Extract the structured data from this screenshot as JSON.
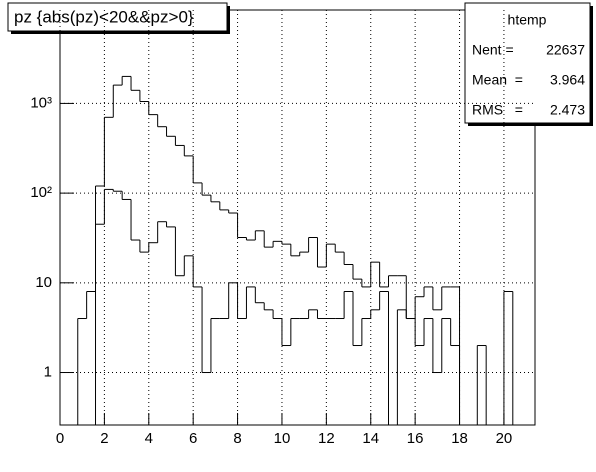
{
  "chart_data": {
    "type": "histogram",
    "title": "pz {abs(pz)<20&&pz>0}",
    "stats": {
      "name": "htemp",
      "rows": [
        {
          "label": "Nent = ",
          "value": 22637,
          "value_label": "22637"
        },
        {
          "label": "Mean  = ",
          "value": 3.964,
          "value_label": "3.964"
        },
        {
          "label": "RMS   = ",
          "value": 2.473,
          "value_label": "2.473"
        }
      ]
    },
    "bins": [
      0.8,
      1.2,
      1.6,
      2.0,
      2.4,
      2.8,
      3.2,
      3.6,
      4.0,
      4.4,
      4.8,
      5.2,
      5.6,
      6.0,
      6.4,
      6.8,
      7.2,
      7.6,
      8.0,
      8.4,
      8.8,
      9.2,
      9.6,
      10.0,
      10.4,
      10.8,
      11.2,
      11.6,
      12.0,
      12.4,
      12.8,
      13.2,
      13.6,
      14.0,
      14.4,
      14.8,
      15.2,
      15.6,
      16.0,
      16.4,
      16.8,
      17.2,
      17.6,
      18.0,
      18.4,
      18.8,
      19.2,
      19.6,
      20.0,
      20.4
    ],
    "series": [
      {
        "color": "#000000",
        "values": [
          0,
          0,
          120,
          700,
          1600,
          2000,
          1400,
          1050,
          750,
          550,
          430,
          340,
          260,
          130,
          95,
          80,
          65,
          60,
          32,
          30,
          38,
          25,
          29,
          27,
          20,
          22,
          32,
          15,
          27,
          22,
          16,
          11,
          9,
          17,
          9,
          12,
          12,
          4,
          7,
          9,
          5,
          9,
          9,
          0,
          0,
          2,
          0,
          0,
          8
        ]
      },
      {
        "color": "#000000",
        "values": [
          4,
          8,
          45,
          110,
          105,
          85,
          30,
          22,
          28,
          48,
          42,
          12,
          20,
          9,
          1,
          4,
          4,
          10,
          4,
          9,
          6,
          5,
          4,
          2,
          4,
          4,
          5,
          4,
          4,
          4,
          8,
          2,
          4,
          5,
          8,
          0,
          5,
          4,
          2,
          4,
          1,
          4,
          2,
          0,
          0,
          0,
          0,
          0,
          0
        ]
      }
    ],
    "xlim": [
      0,
      21.4
    ],
    "ylim": [
      0.26,
      11000
    ],
    "log_y": true,
    "grid": true,
    "xticks": [
      0,
      2,
      4,
      6,
      8,
      10,
      12,
      14,
      16,
      18,
      20
    ],
    "yticks": [
      1,
      10,
      {
        "value": 100,
        "label": "10²"
      },
      {
        "value": 1000,
        "label": "10³"
      }
    ]
  }
}
